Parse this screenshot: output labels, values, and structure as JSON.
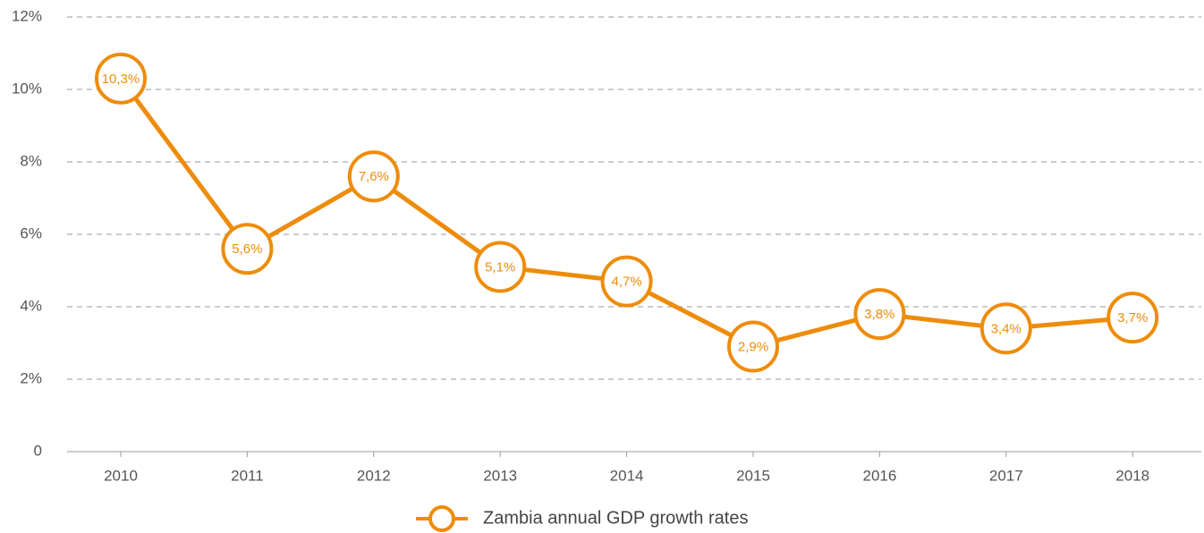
{
  "chart_data": {
    "type": "line",
    "categories": [
      "2010",
      "2011",
      "2012",
      "2013",
      "2014",
      "2015",
      "2016",
      "2017",
      "2018"
    ],
    "series": [
      {
        "name": "Zambia annual GDP growth rates",
        "color": "#ee8c0a",
        "values": [
          10.3,
          5.6,
          7.6,
          5.1,
          4.7,
          2.9,
          3.8,
          3.4,
          3.7
        ],
        "value_labels": [
          "10,3%",
          "5,6%",
          "7,6%",
          "5,1%",
          "4,7%",
          "2,9%",
          "3,8%",
          "3,4%",
          "3,7%"
        ]
      }
    ],
    "ylim": [
      0,
      12
    ],
    "yticks": [
      0,
      {
        "value": 2,
        "label": "2%"
      },
      {
        "value": 4,
        "label": "4%"
      },
      {
        "value": 6,
        "label": "6%"
      },
      {
        "value": 8,
        "label": "8%"
      },
      {
        "value": 10,
        "label": "10%"
      },
      {
        "value": 12,
        "label": "12%"
      }
    ],
    "grid": true,
    "legend": "bottom"
  }
}
